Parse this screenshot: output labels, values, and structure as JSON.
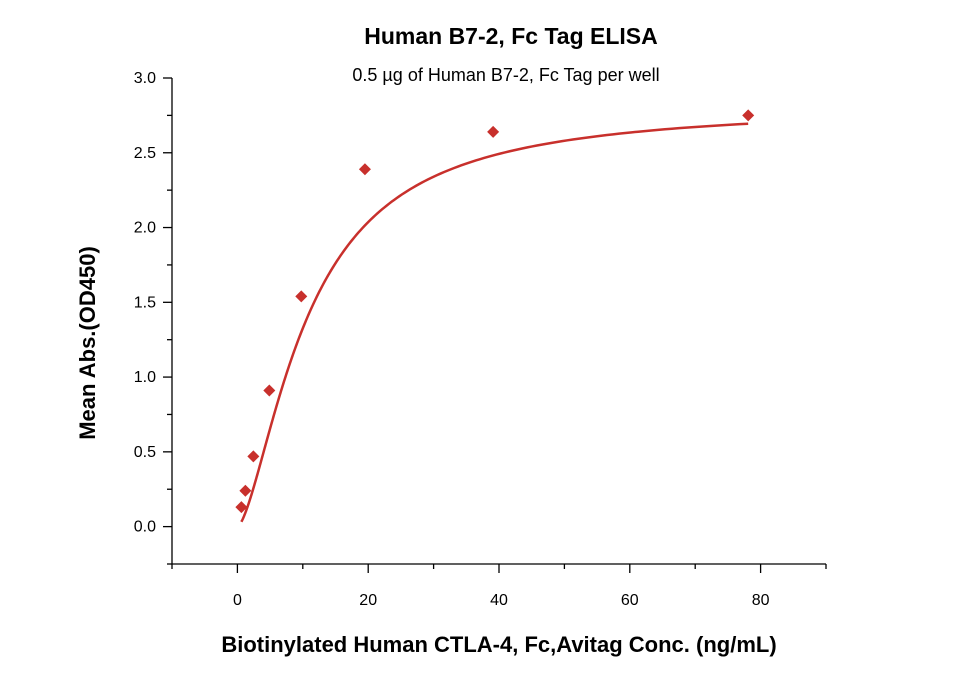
{
  "chart_data": {
    "type": "scatter",
    "title": "Human B7-2, Fc Tag ELISA",
    "subtitle": "0.5 µg of Human B7-2, Fc Tag per well",
    "xlabel": "Biotinylated Human CTLA-4, Fc,Avitag Conc. (ng/mL)",
    "ylabel": "Mean Abs.(OD450)",
    "xlim": [
      -10,
      90
    ],
    "ylim": [
      -0.25,
      3.0
    ],
    "x_ticks": [
      0,
      20,
      40,
      60,
      80
    ],
    "y_ticks": [
      0.0,
      0.5,
      1.0,
      1.5,
      2.0,
      2.5,
      3.0
    ],
    "x_tick_labels": [
      "0",
      "20",
      "40",
      "60",
      "80"
    ],
    "y_tick_labels": [
      "0.0",
      "0.5",
      "1.0",
      "1.5",
      "2.0",
      "2.5",
      "3.0"
    ],
    "grid": false,
    "legend": "none",
    "color": "#c8302c",
    "marker": "diamond",
    "series": [
      {
        "x": [
          0.61,
          1.22,
          2.44,
          4.88,
          9.77,
          19.5,
          39.1,
          78.1
        ],
        "y": [
          0.13,
          0.24,
          0.47,
          0.91,
          1.54,
          2.39,
          2.64,
          2.75
        ]
      }
    ],
    "fit_curve": {
      "type": "4PL",
      "bottom": 0.0,
      "top": 2.82,
      "ec50": 10.8,
      "hill": 1.55
    }
  }
}
